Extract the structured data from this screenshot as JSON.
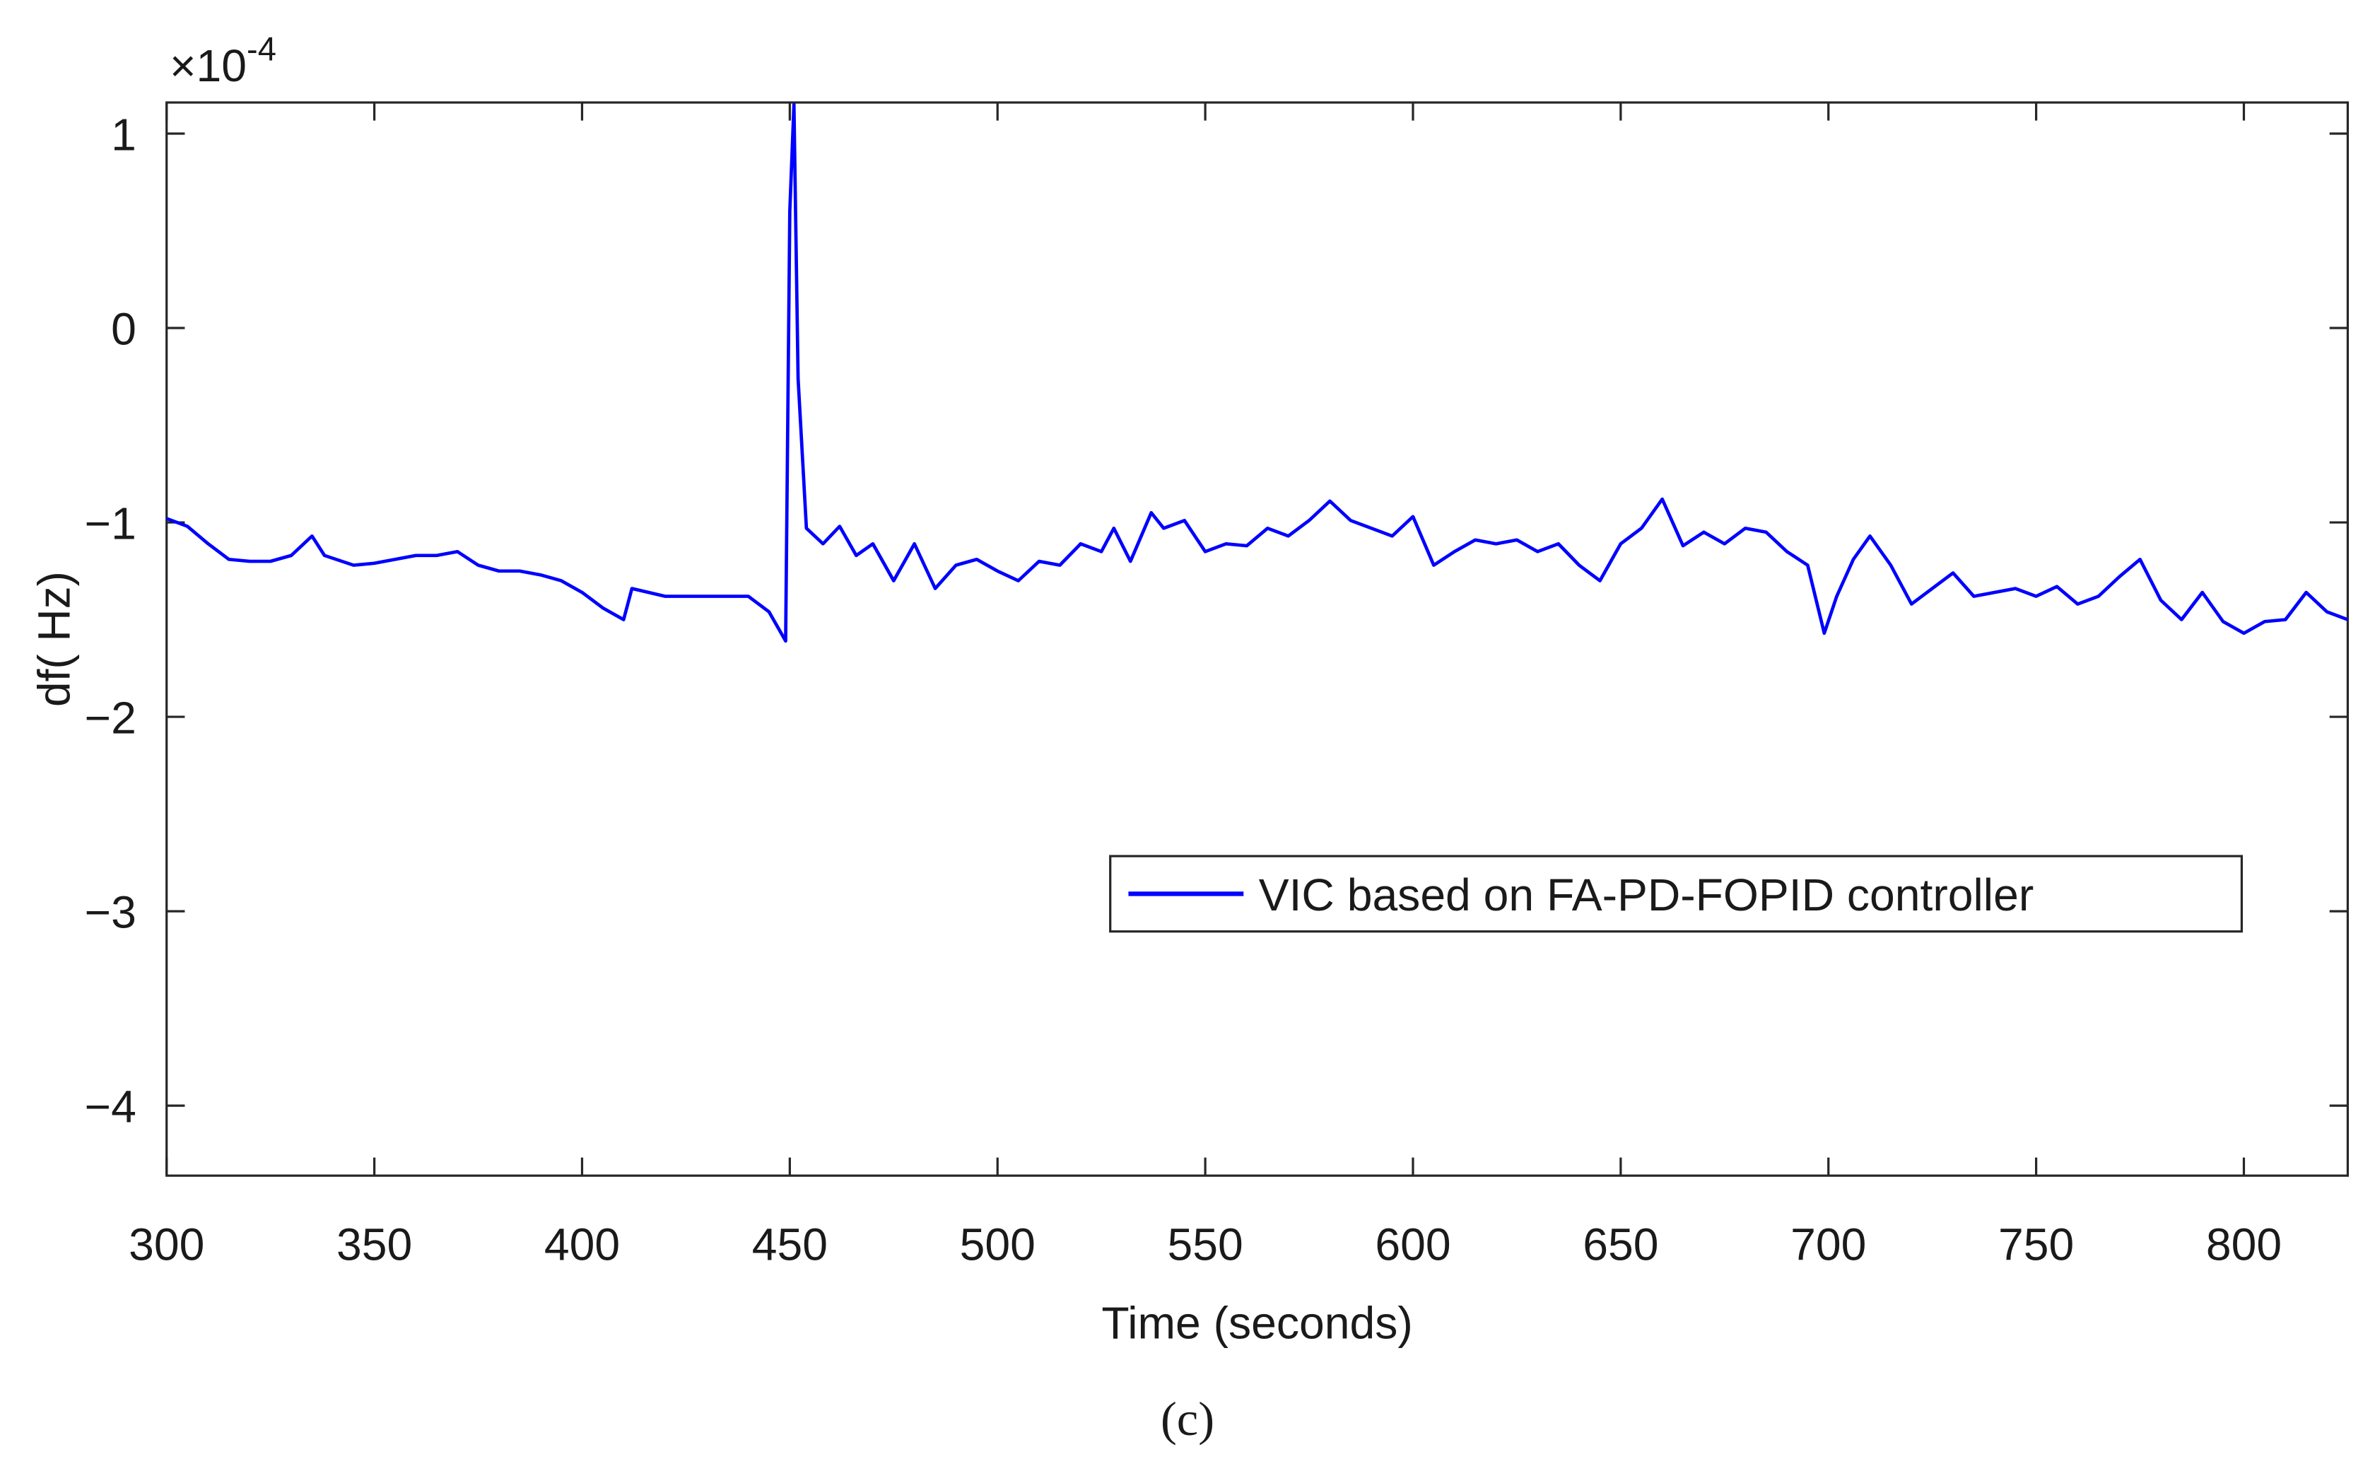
{
  "chart_data": {
    "type": "line",
    "caption": "(c)",
    "x_label": "Time (seconds)",
    "y_label": "df( Hz)",
    "y_multiplier": {
      "base": "×10",
      "exponent": "-4"
    },
    "xlim": [
      300,
      825
    ],
    "ylim": [
      -4.36,
      1.16
    ],
    "xticks": [
      300,
      350,
      400,
      450,
      500,
      550,
      600,
      650,
      700,
      750,
      800
    ],
    "yticks": [
      {
        "value": -4,
        "label": "−4"
      },
      {
        "value": -3,
        "label": "−3"
      },
      {
        "value": -2,
        "label": "−2"
      },
      {
        "value": -1,
        "label": "−1"
      },
      0,
      1
    ],
    "grid": false,
    "legend": "center right",
    "x": [
      300,
      305,
      310,
      315,
      320,
      325,
      330,
      335,
      338,
      345,
      350,
      355,
      360,
      365,
      370,
      375,
      380,
      385,
      390,
      395,
      400,
      405,
      410,
      412,
      420,
      430,
      440,
      445,
      449,
      450,
      451,
      452,
      454,
      458,
      462,
      466,
      470,
      475,
      480,
      485,
      490,
      495,
      500,
      505,
      510,
      515,
      520,
      525,
      528,
      532,
      537,
      540,
      545,
      550,
      555,
      560,
      565,
      570,
      575,
      580,
      585,
      590,
      595,
      600,
      605,
      610,
      615,
      620,
      625,
      630,
      635,
      640,
      645,
      650,
      655,
      660,
      665,
      670,
      675,
      680,
      685,
      690,
      695,
      699,
      702,
      706,
      710,
      715,
      720,
      725,
      730,
      735,
      740,
      745,
      750,
      755,
      760,
      765,
      770,
      775,
      780,
      785,
      790,
      795,
      800,
      805,
      810,
      815,
      820,
      825
    ],
    "series": [
      {
        "name": "VIC based on FA-PD-FOPID controller",
        "color": "#0000ff",
        "values": [
          -0.98,
          -1.02,
          -1.11,
          -1.19,
          -1.2,
          -1.2,
          -1.17,
          -1.07,
          -1.17,
          -1.22,
          -1.21,
          -1.19,
          -1.17,
          -1.17,
          -1.15,
          -1.22,
          -1.25,
          -1.25,
          -1.27,
          -1.3,
          -1.36,
          -1.44,
          -1.5,
          -1.34,
          -1.38,
          -1.38,
          -1.38,
          -1.46,
          -1.61,
          0.6,
          1.15,
          -0.26,
          -1.03,
          -1.11,
          -1.02,
          -1.17,
          -1.11,
          -1.3,
          -1.11,
          -1.34,
          -1.22,
          -1.19,
          -1.25,
          -1.3,
          -1.2,
          -1.22,
          -1.11,
          -1.15,
          -1.03,
          -1.2,
          -0.95,
          -1.03,
          -0.99,
          -1.15,
          -1.11,
          -1.12,
          -1.03,
          -1.07,
          -0.99,
          -0.89,
          -0.99,
          -1.03,
          -1.07,
          -0.97,
          -1.22,
          -1.15,
          -1.09,
          -1.11,
          -1.09,
          -1.15,
          -1.11,
          -1.22,
          -1.3,
          -1.11,
          -1.03,
          -0.88,
          -1.12,
          -1.05,
          -1.11,
          -1.03,
          -1.05,
          -1.15,
          -1.22,
          -1.57,
          -1.38,
          -1.19,
          -1.07,
          -1.22,
          -1.42,
          -1.34,
          -1.26,
          -1.38,
          -1.36,
          -1.34,
          -1.38,
          -1.33,
          -1.42,
          -1.38,
          -1.28,
          -1.19,
          -1.4,
          -1.5,
          -1.36,
          -1.51,
          -1.57,
          -1.51,
          -1.5,
          -1.36,
          -1.46,
          -1.5
        ]
      }
    ]
  }
}
